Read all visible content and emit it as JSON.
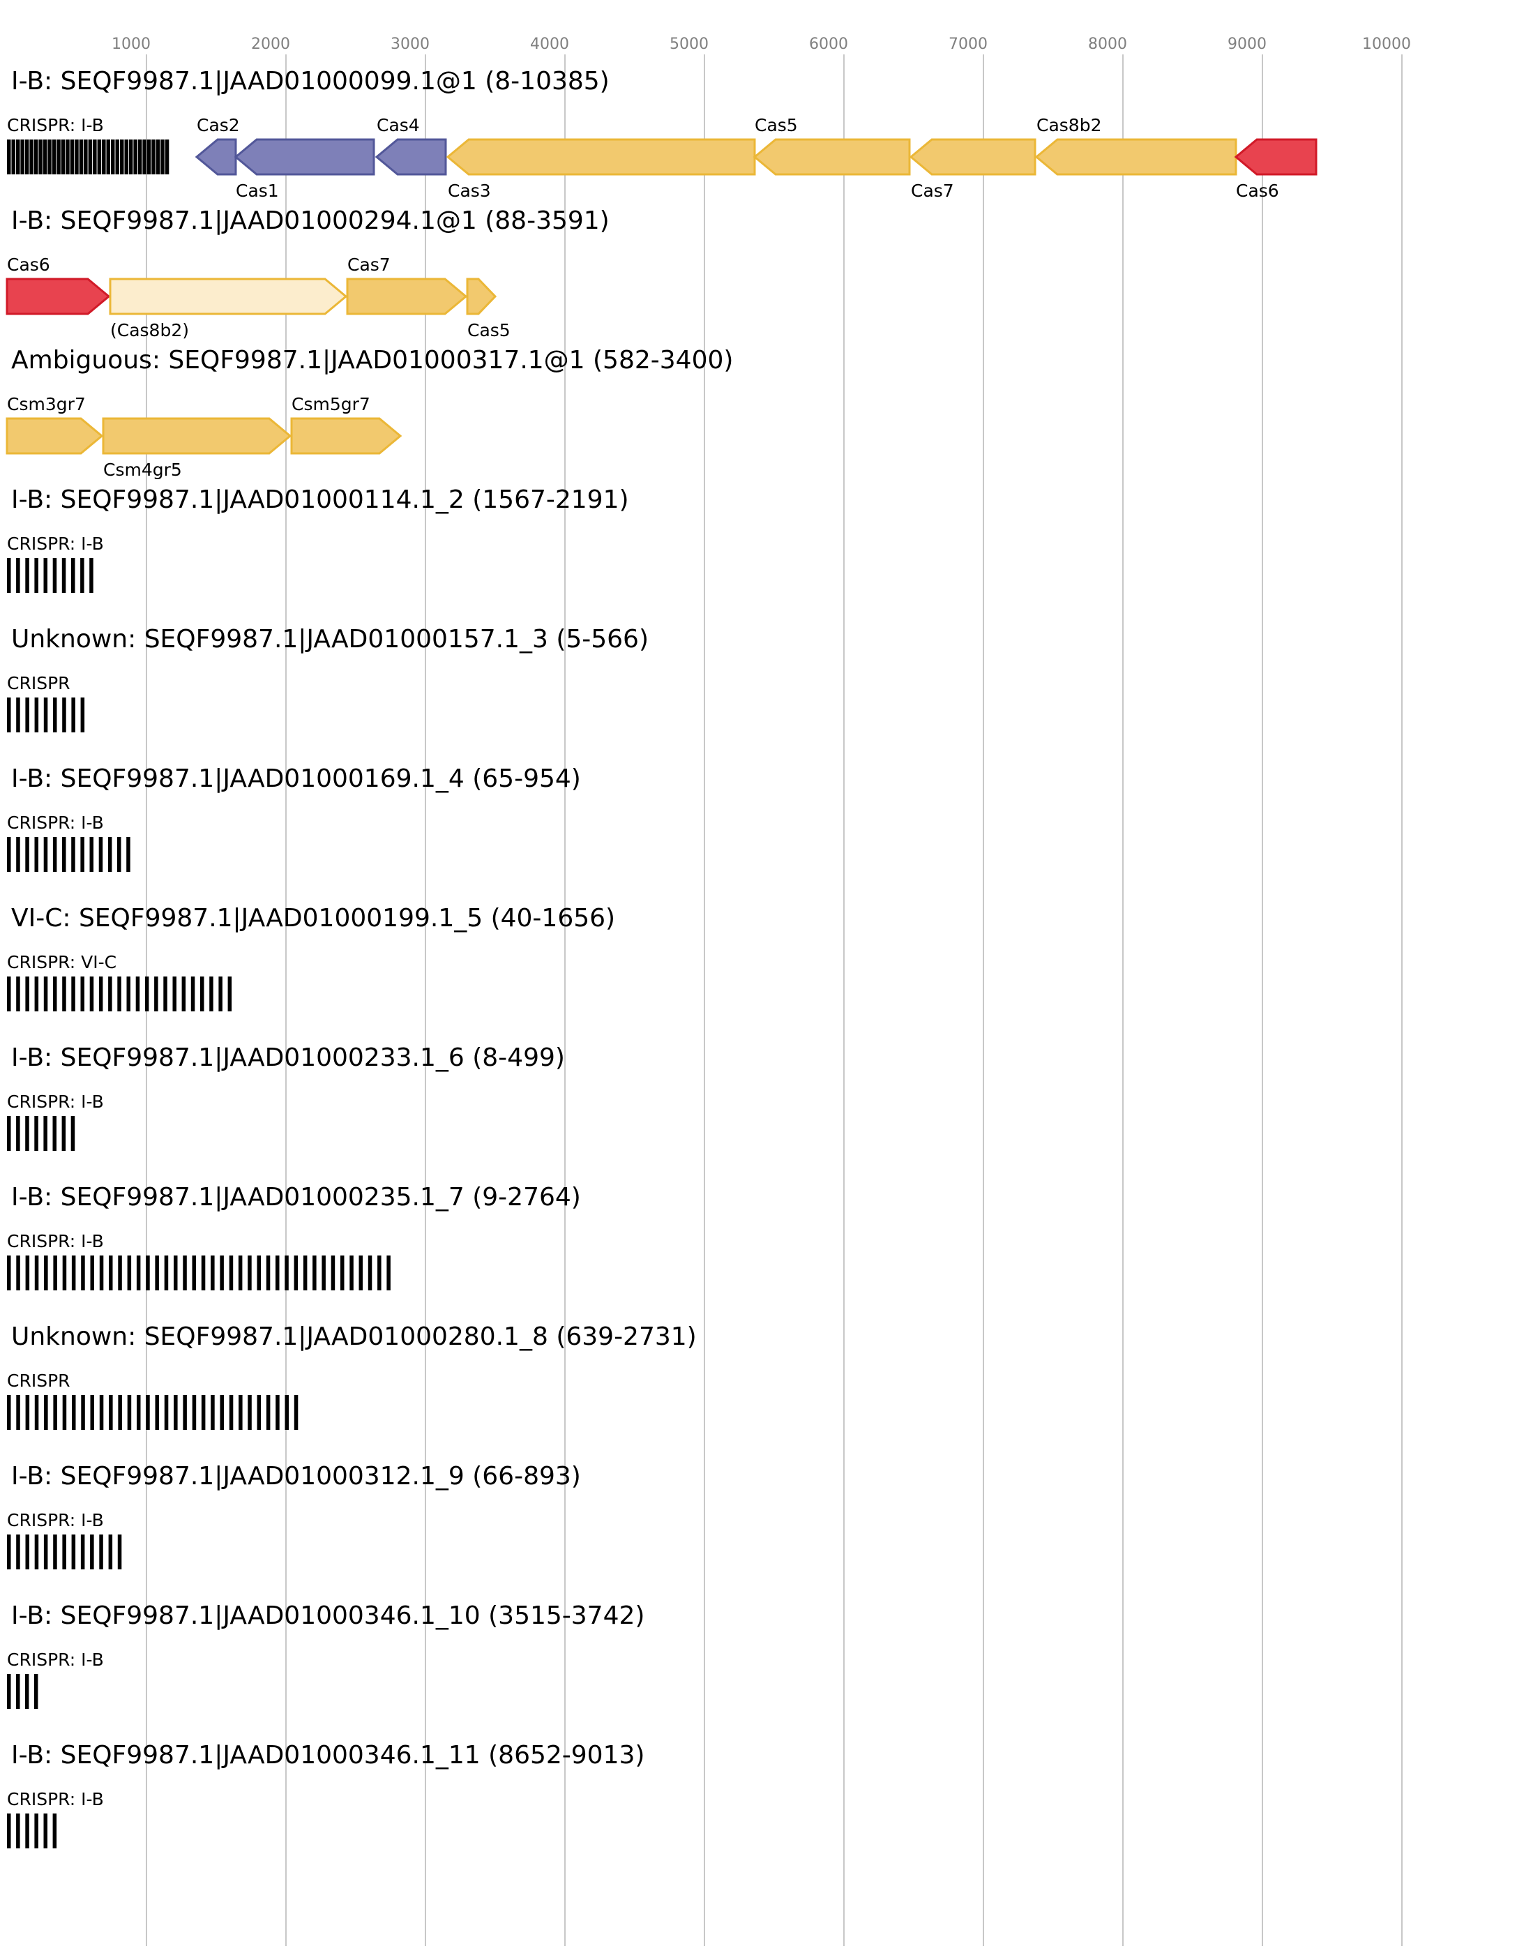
{
  "axis": {
    "ticks": [
      "1000",
      "2000",
      "3000",
      "4000",
      "5000",
      "6000",
      "7000",
      "8000",
      "9000",
      "10000"
    ],
    "tick_values": [
      1000,
      2000,
      3000,
      4000,
      5000,
      6000,
      7000,
      8000,
      9000,
      10000
    ],
    "domain_max": 10500,
    "gridlines": true
  },
  "colors": {
    "adaptation": "#7E80B8",
    "adaptation_stroke": "#525799",
    "interference": "#F2C96E",
    "interference_stroke": "#EBB737",
    "interference_faint": "#FCEDCD",
    "processing": "#E8434F",
    "processing_stroke": "#D11A28",
    "crispr": "#000000",
    "grid": "#C8C8C8",
    "tick_text": "#808080",
    "text": "#000000"
  },
  "rows": [
    {
      "title": "I-B: SEQF9987.1|JAAD01000099.1@1 (8-10385)",
      "crispr": {
        "label": "CRISPR: I-B",
        "start": 0,
        "end": 1150,
        "count": 36
      },
      "genes": [
        {
          "name": "Cas2",
          "start": 1360,
          "end": 1640,
          "strand": "-",
          "role": "adaptation",
          "label_pos": "top"
        },
        {
          "name": "Cas1",
          "start": 1640,
          "end": 2630,
          "strand": "-",
          "role": "adaptation",
          "label_pos": "bottom"
        },
        {
          "name": "Cas4",
          "start": 2650,
          "end": 3145,
          "strand": "-",
          "role": "adaptation",
          "label_pos": "top"
        },
        {
          "name": "Cas3",
          "start": 3160,
          "end": 5360,
          "strand": "-",
          "role": "interference",
          "label_pos": "bottom"
        },
        {
          "name": "Cas5",
          "start": 5360,
          "end": 6470,
          "strand": "-",
          "role": "interference",
          "label_pos": "top"
        },
        {
          "name": "Cas7",
          "start": 6480,
          "end": 7370,
          "strand": "-",
          "role": "interference",
          "label_pos": "bottom"
        },
        {
          "name": "Cas8b2",
          "start": 7380,
          "end": 8810,
          "strand": "-",
          "role": "interference",
          "label_pos": "top"
        },
        {
          "name": "Cas6",
          "start": 8810,
          "end": 9385,
          "strand": "-",
          "role": "processing",
          "label_pos": "bottom"
        }
      ]
    },
    {
      "title": "I-B: SEQF9987.1|JAAD01000294.1@1 (88-3591)",
      "genes": [
        {
          "name": "Cas6",
          "start": 0,
          "end": 730,
          "strand": "+",
          "role": "processing",
          "label_pos": "top"
        },
        {
          "name": "(Cas8b2)",
          "start": 740,
          "end": 2430,
          "strand": "+",
          "role": "interference_faint",
          "label_pos": "bottom"
        },
        {
          "name": "Cas7",
          "start": 2440,
          "end": 3290,
          "strand": "+",
          "role": "interference",
          "label_pos": "top"
        },
        {
          "name": "Cas5",
          "start": 3300,
          "end": 3500,
          "strand": "+",
          "role": "interference",
          "label_pos": "bottom"
        }
      ]
    },
    {
      "title": "Ambiguous: SEQF9987.1|JAAD01000317.1@1 (582-3400)",
      "genes": [
        {
          "name": "Csm3gr7",
          "start": 0,
          "end": 680,
          "strand": "+",
          "role": "interference",
          "label_pos": "top"
        },
        {
          "name": "Csm4gr5",
          "start": 690,
          "end": 2030,
          "strand": "+",
          "role": "interference",
          "label_pos": "bottom"
        },
        {
          "name": "Csm5gr7",
          "start": 2040,
          "end": 2820,
          "strand": "+",
          "role": "interference",
          "label_pos": "top"
        }
      ]
    },
    {
      "title": "I-B: SEQF9987.1|JAAD01000114.1_2 (1567-2191)",
      "crispr": {
        "label": "CRISPR: I-B",
        "start": 0,
        "end": 624,
        "count": 10
      }
    },
    {
      "title": "Unknown: SEQF9987.1|JAAD01000157.1_3 (5-566)",
      "crispr": {
        "label": "CRISPR",
        "start": 0,
        "end": 561,
        "count": 9
      }
    },
    {
      "title": "I-B: SEQF9987.1|JAAD01000169.1_4 (65-954)",
      "crispr": {
        "label": "CRISPR: I-B",
        "start": 0,
        "end": 889,
        "count": 14
      }
    },
    {
      "title": "VI-C: SEQF9987.1|JAAD01000199.1_5 (40-1656)",
      "crispr": {
        "label": "CRISPR: VI-C",
        "start": 0,
        "end": 1616,
        "count": 25
      }
    },
    {
      "title": "I-B: SEQF9987.1|JAAD01000233.1_6 (8-499)",
      "crispr": {
        "label": "CRISPR: I-B",
        "start": 0,
        "end": 491,
        "count": 8
      }
    },
    {
      "title": "I-B: SEQF9987.1|JAAD01000235.1_7 (9-2764)",
      "crispr": {
        "label": "CRISPR: I-B",
        "start": 0,
        "end": 2755,
        "count": 42
      }
    },
    {
      "title": "Unknown: SEQF9987.1|JAAD01000280.1_8 (639-2731)",
      "crispr": {
        "label": "CRISPR",
        "start": 0,
        "end": 2092,
        "count": 32
      }
    },
    {
      "title": "I-B: SEQF9987.1|JAAD01000312.1_9 (66-893)",
      "crispr": {
        "label": "CRISPR: I-B",
        "start": 0,
        "end": 827,
        "count": 13
      }
    },
    {
      "title": "I-B: SEQF9987.1|JAAD01000346.1_10 (3515-3742)",
      "crispr": {
        "label": "CRISPR: I-B",
        "start": 0,
        "end": 227,
        "count": 4
      }
    },
    {
      "title": "I-B: SEQF9987.1|JAAD01000346.1_11 (8652-9013)",
      "crispr": {
        "label": "CRISPR: I-B",
        "start": 0,
        "end": 361,
        "count": 6
      }
    }
  ]
}
